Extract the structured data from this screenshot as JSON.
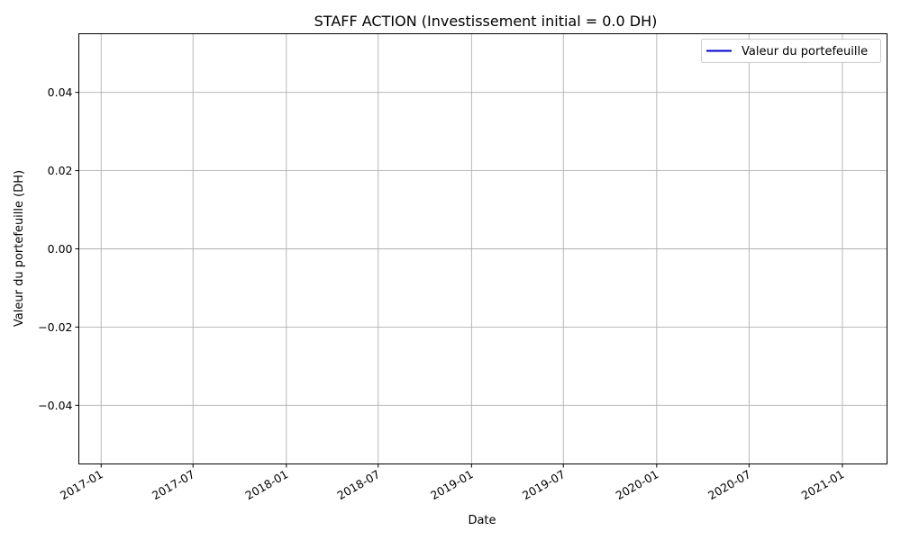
{
  "chart_data": {
    "type": "line",
    "title": "STAFF ACTION (Investissement initial = 0.0 DH)",
    "xlabel": "Date",
    "ylabel": "Valeur du portefeuille (DH)",
    "x_ticks": [
      "2017-01",
      "2017-07",
      "2018-01",
      "2018-07",
      "2019-01",
      "2019-07",
      "2020-01",
      "2020-07",
      "2021-01"
    ],
    "y_ticks": [
      "0.04",
      "0.02",
      "0.00",
      "−0.02",
      "−0.04"
    ],
    "y_tick_values": [
      0.04,
      0.02,
      0.0,
      -0.02,
      -0.04
    ],
    "ylim": [
      -0.055,
      0.055
    ],
    "xlim": [
      "2016-11-18",
      "2021-03-30"
    ],
    "grid": true,
    "legend_position": "top-right",
    "series": [
      {
        "name": "Valeur du portefeuille",
        "color": "#0000cc",
        "x": [],
        "y": []
      }
    ]
  }
}
